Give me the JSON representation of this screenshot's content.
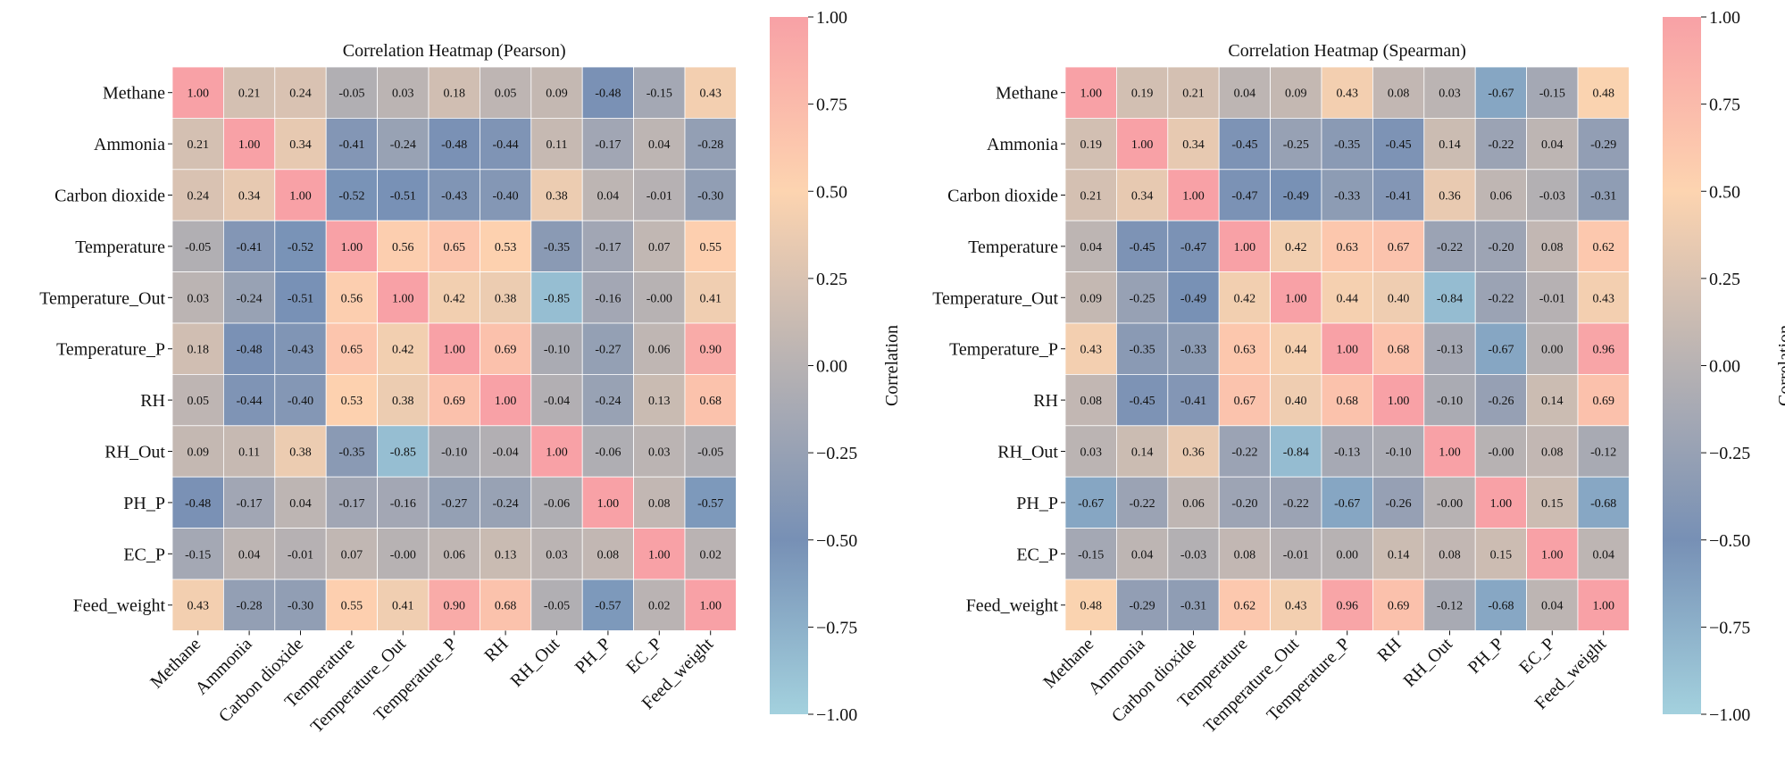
{
  "chart_data": [
    {
      "type": "heatmap",
      "title": "Correlation Heatmap (Pearson)",
      "labels": [
        "Methane",
        "Ammonia",
        "Carbon dioxide",
        "Temperature",
        "Temperature_Out",
        "Temperature_P",
        "RH",
        "RH_Out",
        "PH_P",
        "EC_P",
        "Feed_weight"
      ],
      "values": [
        [
          1.0,
          0.21,
          0.24,
          -0.05,
          0.03,
          0.18,
          0.05,
          0.09,
          -0.48,
          -0.15,
          0.43
        ],
        [
          0.21,
          1.0,
          0.34,
          -0.41,
          -0.24,
          -0.48,
          -0.44,
          0.11,
          -0.17,
          0.04,
          -0.28
        ],
        [
          0.24,
          0.34,
          1.0,
          -0.52,
          -0.51,
          -0.43,
          -0.4,
          0.38,
          0.04,
          -0.01,
          -0.3
        ],
        [
          -0.05,
          -0.41,
          -0.52,
          1.0,
          0.56,
          0.65,
          0.53,
          -0.35,
          -0.17,
          0.07,
          0.55
        ],
        [
          0.03,
          -0.24,
          -0.51,
          0.56,
          1.0,
          0.42,
          0.38,
          -0.85,
          -0.16,
          -0.0,
          0.41
        ],
        [
          0.18,
          -0.48,
          -0.43,
          0.65,
          0.42,
          1.0,
          0.69,
          -0.1,
          -0.27,
          0.06,
          0.9
        ],
        [
          0.05,
          -0.44,
          -0.4,
          0.53,
          0.38,
          0.69,
          1.0,
          -0.04,
          -0.24,
          0.13,
          0.68
        ],
        [
          0.09,
          0.11,
          0.38,
          -0.35,
          -0.85,
          -0.1,
          -0.04,
          1.0,
          -0.06,
          0.03,
          -0.05
        ],
        [
          -0.48,
          -0.17,
          0.04,
          -0.17,
          -0.16,
          -0.27,
          -0.24,
          -0.06,
          1.0,
          0.08,
          -0.57
        ],
        [
          -0.15,
          0.04,
          -0.01,
          0.07,
          -0.0,
          0.06,
          0.13,
          0.03,
          0.08,
          1.0,
          0.02
        ],
        [
          0.43,
          -0.28,
          -0.3,
          0.55,
          0.41,
          0.9,
          0.68,
          -0.05,
          -0.57,
          0.02,
          1.0
        ]
      ],
      "value_range": [
        -1.0,
        1.0
      ],
      "colorbar": {
        "label": "Correlation",
        "ticks": [
          "1.00",
          "0.75",
          "0.50",
          "0.25",
          "0.00",
          "−0.25",
          "−0.50",
          "−0.75",
          "−1.00"
        ]
      }
    },
    {
      "type": "heatmap",
      "title": "Correlation Heatmap (Spearman)",
      "labels": [
        "Methane",
        "Ammonia",
        "Carbon dioxide",
        "Temperature",
        "Temperature_Out",
        "Temperature_P",
        "RH",
        "RH_Out",
        "PH_P",
        "EC_P",
        "Feed_weight"
      ],
      "values": [
        [
          1.0,
          0.19,
          0.21,
          0.04,
          0.09,
          0.43,
          0.08,
          0.03,
          -0.67,
          -0.15,
          0.48
        ],
        [
          0.19,
          1.0,
          0.34,
          -0.45,
          -0.25,
          -0.35,
          -0.45,
          0.14,
          -0.22,
          0.04,
          -0.29
        ],
        [
          0.21,
          0.34,
          1.0,
          -0.47,
          -0.49,
          -0.33,
          -0.41,
          0.36,
          0.06,
          -0.03,
          -0.31
        ],
        [
          0.04,
          -0.45,
          -0.47,
          1.0,
          0.42,
          0.63,
          0.67,
          -0.22,
          -0.2,
          0.08,
          0.62
        ],
        [
          0.09,
          -0.25,
          -0.49,
          0.42,
          1.0,
          0.44,
          0.4,
          -0.84,
          -0.22,
          -0.01,
          0.43
        ],
        [
          0.43,
          -0.35,
          -0.33,
          0.63,
          0.44,
          1.0,
          0.68,
          -0.13,
          -0.67,
          0.0,
          0.96
        ],
        [
          0.08,
          -0.45,
          -0.41,
          0.67,
          0.4,
          0.68,
          1.0,
          -0.1,
          -0.26,
          0.14,
          0.69
        ],
        [
          0.03,
          0.14,
          0.36,
          -0.22,
          -0.84,
          -0.13,
          -0.1,
          1.0,
          -0.0,
          0.08,
          -0.12
        ],
        [
          -0.67,
          -0.22,
          0.06,
          -0.2,
          -0.22,
          -0.67,
          -0.26,
          -0.0,
          1.0,
          0.15,
          -0.68
        ],
        [
          -0.15,
          0.04,
          -0.03,
          0.08,
          -0.01,
          0.0,
          0.14,
          0.08,
          0.15,
          1.0,
          0.04
        ],
        [
          0.48,
          -0.29,
          -0.31,
          0.62,
          0.43,
          0.96,
          0.69,
          -0.12,
          -0.68,
          0.04,
          1.0
        ]
      ],
      "value_range": [
        -1.0,
        1.0
      ],
      "colorbar": {
        "label": "Correlation",
        "ticks": [
          "1.00",
          "0.75",
          "0.50",
          "0.25",
          "0.00",
          "−0.25",
          "−0.50",
          "−0.75",
          "−1.00"
        ]
      }
    }
  ],
  "colors": {
    "scale": [
      "#a3d1de",
      "#7790b5",
      "#b7b2b3",
      "#fdd4b0",
      "#f8a1a6"
    ],
    "text_dark": "#111111",
    "text_light": "#ffffff",
    "grid": "#ffffff"
  }
}
